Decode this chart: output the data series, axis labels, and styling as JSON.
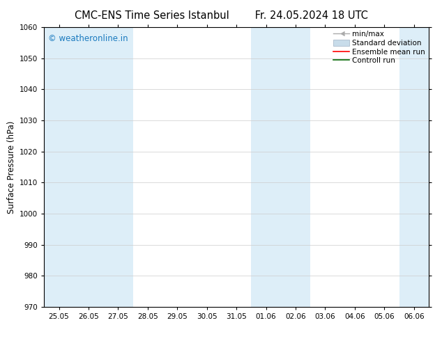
{
  "title_left": "CMC-ENS Time Series Istanbul",
  "title_right": "Fr. 24.05.2024 18 UTC",
  "ylabel": "Surface Pressure (hPa)",
  "ylim": [
    970,
    1060
  ],
  "yticks": [
    970,
    980,
    990,
    1000,
    1010,
    1020,
    1030,
    1040,
    1050,
    1060
  ],
  "xtick_labels": [
    "25.05",
    "26.05",
    "27.05",
    "28.05",
    "29.05",
    "30.05",
    "31.05",
    "01.06",
    "02.06",
    "03.06",
    "04.06",
    "05.06",
    "06.06"
  ],
  "shaded_positions": [
    0,
    1,
    2,
    7,
    8,
    12
  ],
  "shaded_color": "#ddeef8",
  "watermark_text": "© weatheronline.in",
  "watermark_color": "#1a7abf",
  "background_color": "#ffffff",
  "grid_color": "#cccccc",
  "title_fontsize": 10.5,
  "tick_fontsize": 7.5,
  "ylabel_fontsize": 8.5,
  "legend_fontsize": 7.5
}
